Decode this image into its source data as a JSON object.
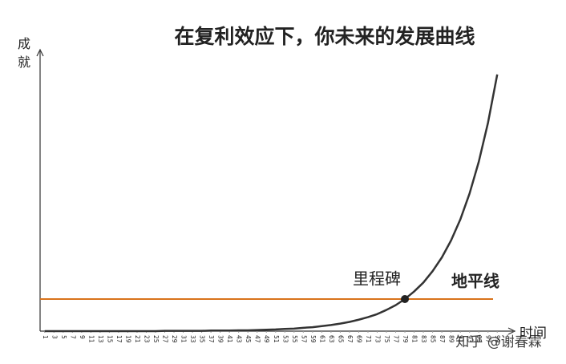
{
  "chart_data": {
    "type": "line",
    "title": "在复利效应下，你未来的发展曲线",
    "y_label": "成就",
    "x_label": "时间",
    "x": [
      1,
      3,
      5,
      7,
      9,
      11,
      13,
      15,
      17,
      19,
      21,
      23,
      25,
      27,
      29,
      31,
      33,
      35,
      37,
      39,
      41,
      43,
      45,
      47,
      49,
      51,
      53,
      55,
      57,
      59,
      61,
      63,
      65,
      67,
      69,
      71,
      73,
      75,
      77,
      79,
      81,
      83,
      85,
      87,
      89,
      91,
      93,
      95,
      97,
      99
    ],
    "series": [
      {
        "color": "#333333",
        "values": [
          0,
          0,
          0,
          0,
          0,
          0,
          0,
          0,
          0,
          0,
          0,
          0,
          0,
          0.1,
          0.1,
          0.1,
          0.1,
          0.1,
          0.2,
          0.2,
          0.2,
          0.3,
          0.3,
          0.4,
          0.5,
          0.6,
          0.8,
          0.9,
          1.2,
          1.4,
          1.8,
          2.2,
          2.7,
          3.3,
          4.1,
          5.0,
          6.1,
          7.6,
          9.3,
          11.5,
          14.2,
          17.4,
          21.5,
          26.4,
          32.5,
          40.0,
          49.3,
          60.7,
          74.7,
          92.0
        ]
      }
    ],
    "reference_line": {
      "value": 11.5,
      "label": "地平线",
      "color": "#d9731a"
    },
    "milestone": {
      "x": 79,
      "y": 11.5,
      "label": "里程碑"
    },
    "watermark": "知乎 @谢春霖",
    "xlim": [
      0,
      100
    ],
    "xticks": [
      1,
      3,
      5,
      7,
      9,
      11,
      13,
      15,
      17,
      19,
      21,
      23,
      25,
      27,
      29,
      31,
      33,
      35,
      37,
      39,
      41,
      43,
      45,
      47,
      49,
      51,
      53,
      55,
      57,
      59,
      61,
      63,
      65,
      67,
      69,
      71,
      73,
      75,
      77,
      79,
      81,
      83,
      85,
      87,
      89,
      91,
      93,
      95,
      97,
      99
    ],
    "ylim": [
      0,
      100
    ]
  }
}
